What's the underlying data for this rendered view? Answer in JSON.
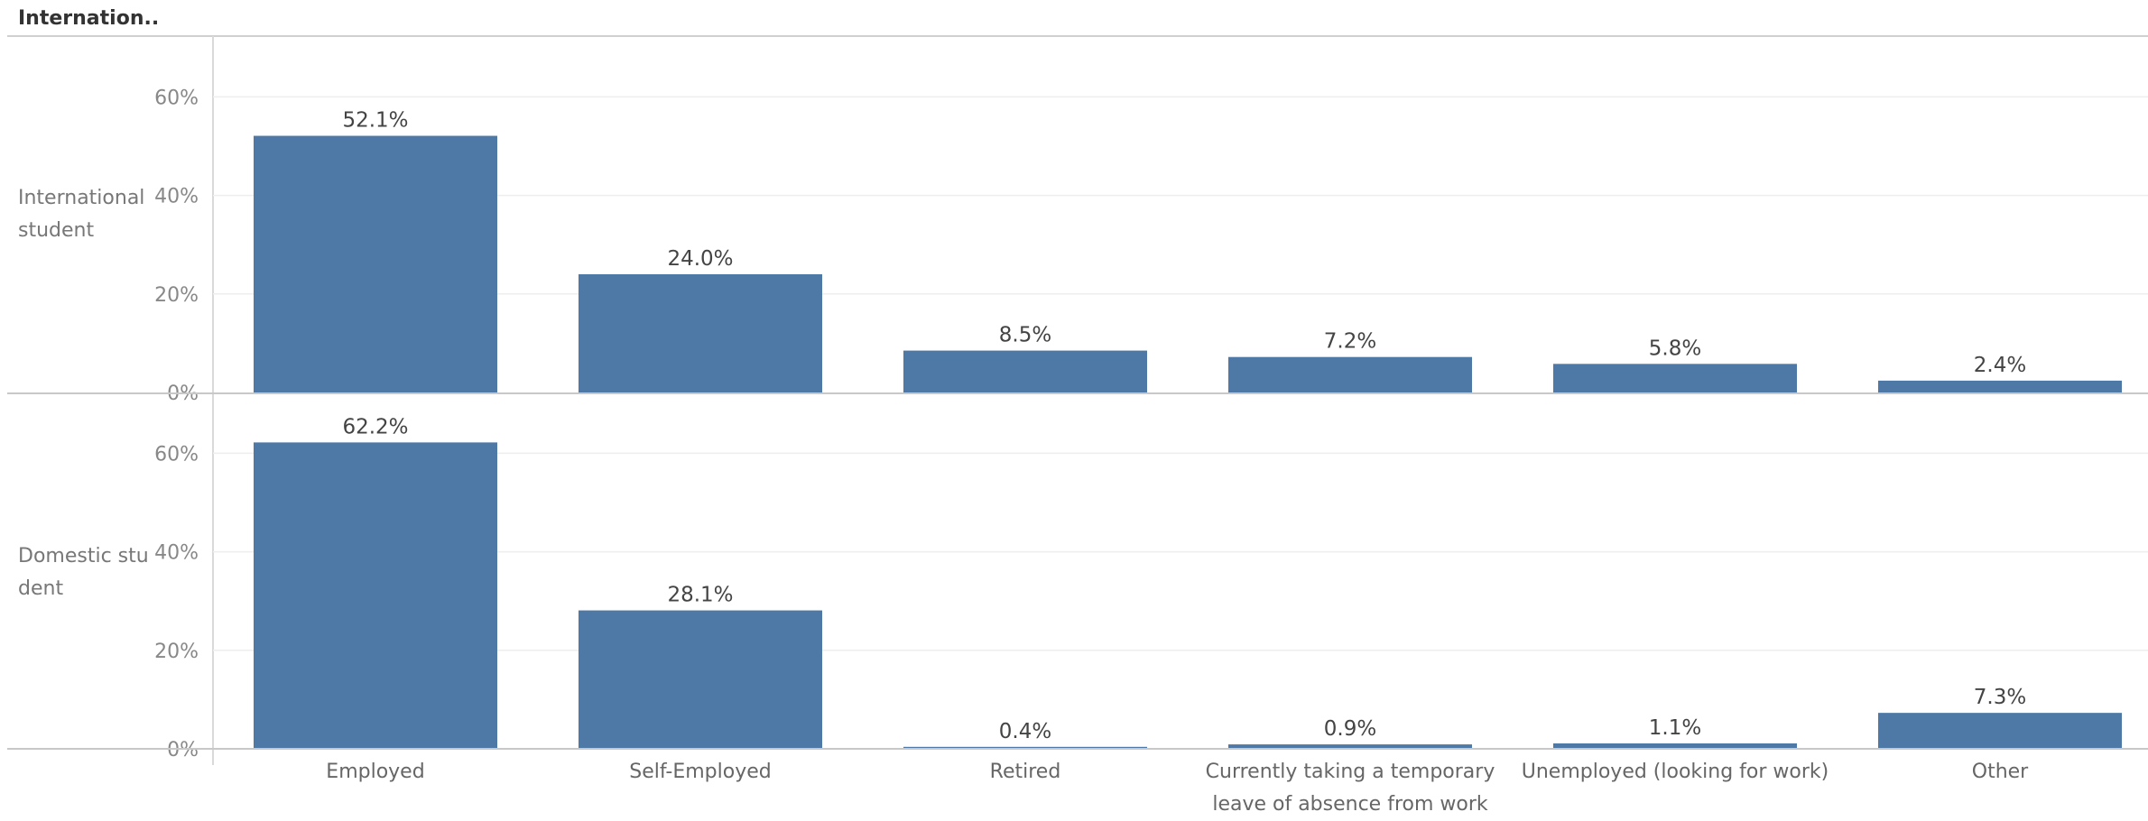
{
  "header": {
    "title": "Internation.."
  },
  "chart_data": {
    "type": "bar",
    "categories": [
      "Employed",
      "Self-Employed",
      "Retired",
      "Currently taking a temporary leave of absence from work",
      "Unemployed (looking for work)",
      "Other"
    ],
    "series": [
      {
        "name": "International student",
        "values": [
          52.1,
          24.0,
          8.5,
          7.2,
          5.8,
          2.4
        ],
        "labels": [
          "52.1%",
          "24.0%",
          "8.5%",
          "7.2%",
          "5.8%",
          "2.4%"
        ]
      },
      {
        "name": "Domestic student",
        "values": [
          62.2,
          28.1,
          0.4,
          0.9,
          1.1,
          7.3
        ],
        "labels": [
          "62.2%",
          "28.1%",
          "0.4%",
          "0.9%",
          "1.1%",
          "7.3%"
        ]
      }
    ],
    "ylim": [
      0,
      72
    ],
    "yticks": [
      "0%",
      "20%",
      "40%",
      "60%"
    ],
    "ytick_values": [
      0,
      20,
      40,
      60
    ],
    "grid": true,
    "bar_color": "#4e79a7"
  }
}
